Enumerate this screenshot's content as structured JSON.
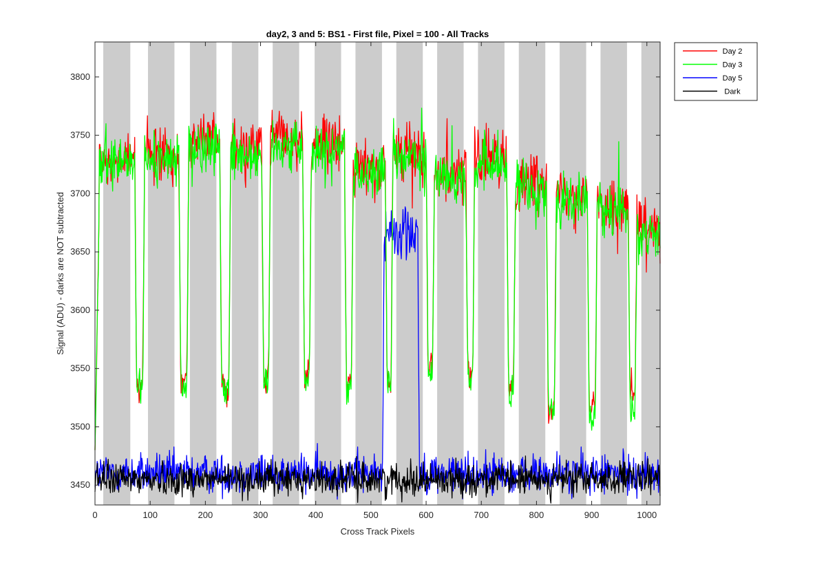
{
  "chart_data": {
    "type": "line",
    "title": "day2, 3 and 5: BS1 - First file, Pixel = 100 - All Tracks",
    "xlabel": "Cross Track Pixels",
    "ylabel": "Signal (ADU) - darks are NOT subtracted",
    "xlim": [
      0,
      1024
    ],
    "ylim": [
      3433,
      3830
    ],
    "xticks": [
      0,
      100,
      200,
      300,
      400,
      500,
      600,
      700,
      800,
      900,
      1000
    ],
    "yticks": [
      3450,
      3500,
      3550,
      3600,
      3650,
      3700,
      3750,
      3800
    ],
    "grid": false,
    "legend_position": "outside-top-right",
    "shaded_bands": [
      [
        15,
        64
      ],
      [
        96,
        144
      ],
      [
        172,
        220
      ],
      [
        248,
        296
      ],
      [
        322,
        370
      ],
      [
        398,
        446
      ],
      [
        472,
        520
      ],
      [
        546,
        594
      ],
      [
        620,
        668
      ],
      [
        694,
        742
      ],
      [
        768,
        816
      ],
      [
        842,
        890
      ],
      [
        916,
        964
      ],
      [
        990,
        1024
      ]
    ],
    "colors": {
      "band": "#cccccc",
      "axes": "#262626"
    },
    "series": [
      {
        "name": "Day 2",
        "color": "#ff0000",
        "plateaus": [
          {
            "x0": 8,
            "x1": 72,
            "level": 3730
          },
          {
            "x0": 90,
            "x1": 152,
            "level": 3735
          },
          {
            "x0": 170,
            "x1": 226,
            "level": 3745
          },
          {
            "x0": 246,
            "x1": 302,
            "level": 3740
          },
          {
            "x0": 318,
            "x1": 376,
            "level": 3748
          },
          {
            "x0": 392,
            "x1": 452,
            "level": 3742
          },
          {
            "x0": 468,
            "x1": 526,
            "level": 3722
          },
          {
            "x0": 540,
            "x1": 600,
            "level": 3735
          },
          {
            "x0": 615,
            "x1": 672,
            "level": 3720
          },
          {
            "x0": 688,
            "x1": 746,
            "level": 3728
          },
          {
            "x0": 762,
            "x1": 818,
            "level": 3710
          },
          {
            "x0": 836,
            "x1": 892,
            "level": 3700
          },
          {
            "x0": 910,
            "x1": 966,
            "level": 3690
          },
          {
            "x0": 982,
            "x1": 1024,
            "level": 3668
          }
        ],
        "dips": [
          {
            "x": 81,
            "level": 3535
          },
          {
            "x": 160,
            "level": 3540
          },
          {
            "x": 236,
            "level": 3535
          },
          {
            "x": 310,
            "level": 3540
          },
          {
            "x": 384,
            "level": 3545
          },
          {
            "x": 460,
            "level": 3540
          },
          {
            "x": 533,
            "level": 3540
          },
          {
            "x": 608,
            "level": 3550
          },
          {
            "x": 680,
            "level": 3545
          },
          {
            "x": 754,
            "level": 3535
          },
          {
            "x": 826,
            "level": 3520
          },
          {
            "x": 900,
            "level": 3515
          },
          {
            "x": 974,
            "level": 3525
          }
        ]
      },
      {
        "name": "Day 3",
        "color": "#00ff00",
        "plateaus": [
          {
            "x0": 8,
            "x1": 72,
            "level": 3725
          },
          {
            "x0": 90,
            "x1": 152,
            "level": 3730
          },
          {
            "x0": 170,
            "x1": 226,
            "level": 3740
          },
          {
            "x0": 246,
            "x1": 302,
            "level": 3735
          },
          {
            "x0": 318,
            "x1": 376,
            "level": 3743
          },
          {
            "x0": 392,
            "x1": 452,
            "level": 3738
          },
          {
            "x0": 468,
            "x1": 526,
            "level": 3718
          },
          {
            "x0": 540,
            "x1": 600,
            "level": 3730
          },
          {
            "x0": 615,
            "x1": 672,
            "level": 3715
          },
          {
            "x0": 688,
            "x1": 746,
            "level": 3724
          },
          {
            "x0": 762,
            "x1": 818,
            "level": 3705
          },
          {
            "x0": 836,
            "x1": 892,
            "level": 3695
          },
          {
            "x0": 910,
            "x1": 966,
            "level": 3686
          },
          {
            "x0": 982,
            "x1": 1024,
            "level": 3664
          }
        ],
        "dips": [
          {
            "x": 81,
            "level": 3532
          },
          {
            "x": 160,
            "level": 3532
          },
          {
            "x": 236,
            "level": 3532
          },
          {
            "x": 310,
            "level": 3536
          },
          {
            "x": 384,
            "level": 3540
          },
          {
            "x": 460,
            "level": 3535
          },
          {
            "x": 533,
            "level": 3536
          },
          {
            "x": 608,
            "level": 3545
          },
          {
            "x": 680,
            "level": 3540
          },
          {
            "x": 754,
            "level": 3530
          },
          {
            "x": 826,
            "level": 3515
          },
          {
            "x": 900,
            "level": 3508
          },
          {
            "x": 974,
            "level": 3515
          }
        ]
      },
      {
        "name": "Day 5",
        "color": "#0000ff",
        "baseline": 3460,
        "noise": 12,
        "bump": {
          "x0": 521,
          "x1": 588,
          "level": 3665
        }
      },
      {
        "name": "Dark",
        "color": "#000000",
        "baseline": 3455,
        "noise": 10
      }
    ]
  }
}
